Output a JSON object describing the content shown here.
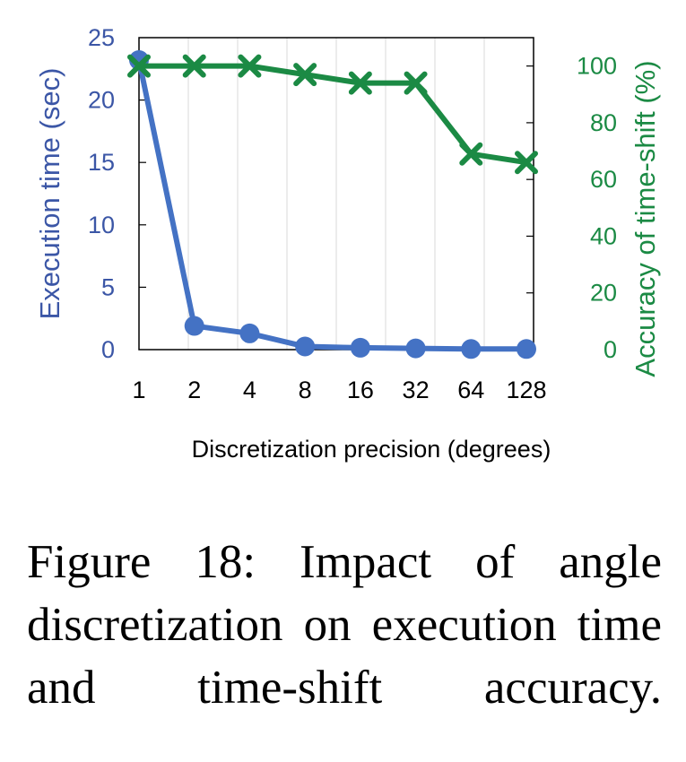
{
  "chart_data": {
    "type": "line",
    "xlabel": "Discretization precision (degrees)",
    "categories": [
      "1",
      "2",
      "4",
      "8",
      "16",
      "32",
      "64",
      "128"
    ],
    "grid": true,
    "y_left": {
      "label": "Execution time (sec)",
      "ylim": [
        0,
        25
      ],
      "ticks": [
        "0",
        "5",
        "10",
        "15",
        "20",
        "25"
      ],
      "color": "#4472c4"
    },
    "y_right": {
      "label": "Accuracy of time-shift (%)",
      "ylim": [
        0,
        110
      ],
      "ticks": [
        "0",
        "20",
        "40",
        "60",
        "80",
        "100"
      ],
      "color": "#1b8a44"
    },
    "series": [
      {
        "axis": "left",
        "marker": "circle",
        "color": "#4472c4",
        "x": [
          1,
          2,
          4,
          8,
          16,
          32,
          64,
          128
        ],
        "values": [
          23.2,
          1.9,
          1.3,
          0.25,
          0.15,
          0.1,
          0.05,
          0.05
        ]
      },
      {
        "axis": "right",
        "marker": "x",
        "color": "#1b8a44",
        "x": [
          1,
          2,
          4,
          8,
          16,
          32,
          64,
          128
        ],
        "values": [
          100,
          100,
          100,
          97,
          94,
          94,
          69,
          66
        ]
      }
    ]
  },
  "caption": "Figure 18: Impact of angle discretization on execution time and time-shift accuracy."
}
